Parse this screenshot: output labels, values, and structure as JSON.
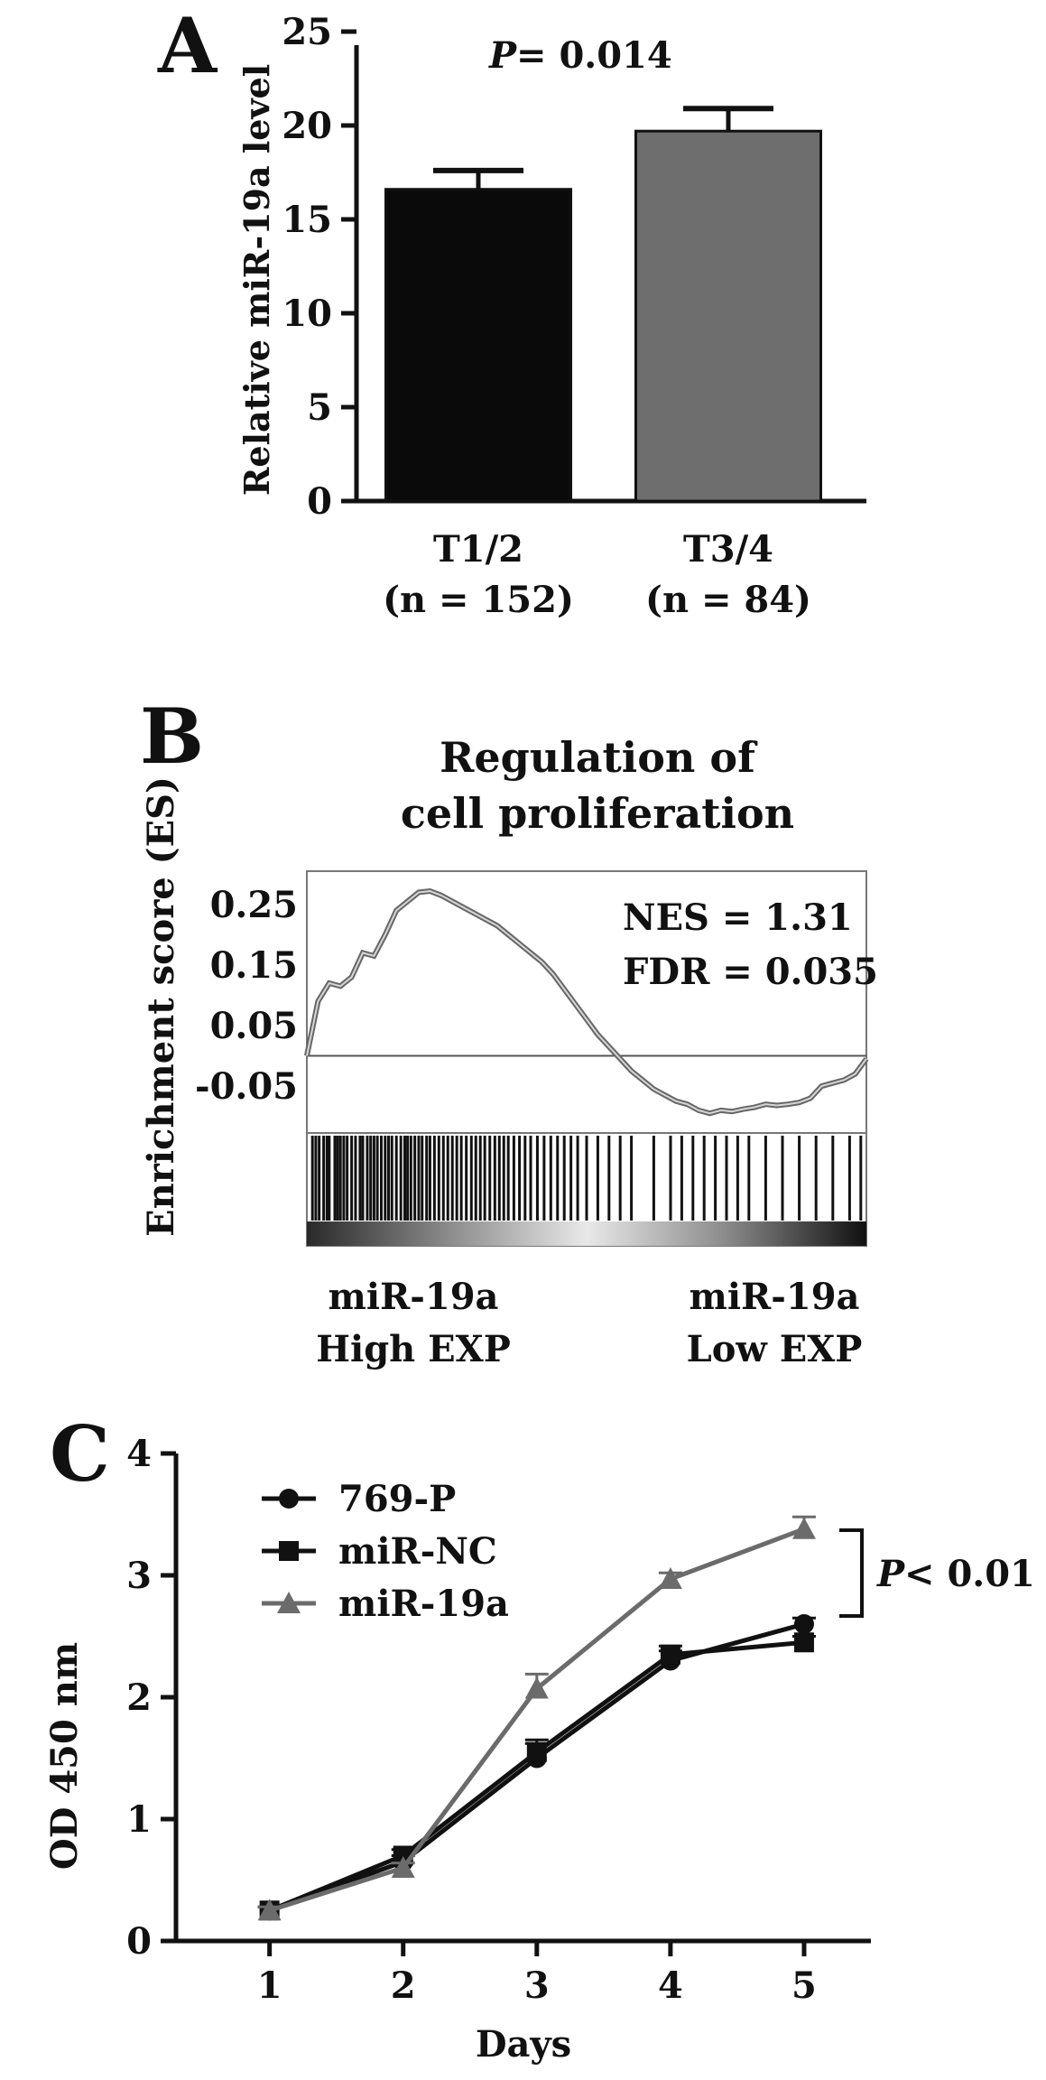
{
  "chart_data": [
    {
      "type": "bar",
      "panel_label": "A",
      "categories": [
        "T1/2",
        "T3/4"
      ],
      "category_sublabels": [
        "(n = 152)",
        "(n = 84)"
      ],
      "values": [
        16.6,
        19.7
      ],
      "errors": [
        1.0,
        1.2
      ],
      "colors": [
        "#0a0a0a",
        "#6e6e6e"
      ],
      "ylabel": "Relative miR-19a level",
      "ylim": [
        0,
        25
      ],
      "yticks": [
        "0",
        "5",
        "10",
        "15",
        "20",
        "25"
      ],
      "annotation": {
        "p_label": "P",
        "p_value": "= 0.014"
      }
    },
    {
      "type": "line",
      "panel_label": "B",
      "title_line1": "Regulation of",
      "title_line2": "cell proliferation",
      "ylabel": "Enrichment score (ES)",
      "yticks": [
        "0.25",
        "0.15",
        "0.05",
        "-0.05"
      ],
      "ylim": [
        -0.12,
        0.29
      ],
      "x": [
        0,
        0.02,
        0.04,
        0.06,
        0.08,
        0.1,
        0.12,
        0.14,
        0.16,
        0.18,
        0.2,
        0.22,
        0.24,
        0.26,
        0.28,
        0.3,
        0.32,
        0.34,
        0.36,
        0.38,
        0.4,
        0.42,
        0.44,
        0.46,
        0.48,
        0.5,
        0.52,
        0.54,
        0.56,
        0.58,
        0.6,
        0.62,
        0.64,
        0.66,
        0.68,
        0.7,
        0.72,
        0.74,
        0.76,
        0.78,
        0.8,
        0.82,
        0.84,
        0.86,
        0.88,
        0.9,
        0.92,
        0.94,
        0.96,
        0.98,
        1.0
      ],
      "y": [
        0.0,
        0.09,
        0.12,
        0.115,
        0.13,
        0.17,
        0.165,
        0.2,
        0.24,
        0.255,
        0.27,
        0.272,
        0.265,
        0.255,
        0.245,
        0.235,
        0.225,
        0.215,
        0.2,
        0.185,
        0.17,
        0.155,
        0.135,
        0.11,
        0.085,
        0.06,
        0.035,
        0.015,
        -0.005,
        -0.025,
        -0.04,
        -0.055,
        -0.065,
        -0.075,
        -0.08,
        -0.09,
        -0.095,
        -0.09,
        -0.092,
        -0.088,
        -0.085,
        -0.08,
        -0.082,
        -0.08,
        -0.077,
        -0.07,
        -0.05,
        -0.045,
        -0.04,
        -0.03,
        -0.005
      ],
      "nes": "NES = 1.31",
      "fdr": "FDR = 0.035",
      "left_label_line1": "miR-19a",
      "left_label_line2": "High EXP",
      "right_label_line1": "miR-19a",
      "right_label_line2": "Low EXP",
      "hits": [
        0.01,
        0.016,
        0.022,
        0.03,
        0.036,
        0.04,
        0.05,
        0.055,
        0.06,
        0.066,
        0.072,
        0.08,
        0.087,
        0.095,
        0.1,
        0.108,
        0.114,
        0.12,
        0.126,
        0.133,
        0.14,
        0.146,
        0.152,
        0.16,
        0.168,
        0.175,
        0.18,
        0.186,
        0.193,
        0.2,
        0.206,
        0.214,
        0.22,
        0.228,
        0.236,
        0.244,
        0.252,
        0.26,
        0.268,
        0.276,
        0.285,
        0.294,
        0.302,
        0.31,
        0.318,
        0.327,
        0.336,
        0.344,
        0.352,
        0.36,
        0.37,
        0.38,
        0.39,
        0.4,
        0.412,
        0.424,
        0.436,
        0.448,
        0.46,
        0.472,
        0.484,
        0.5,
        0.52,
        0.54,
        0.56,
        0.58,
        0.62,
        0.65,
        0.67,
        0.69,
        0.71,
        0.73,
        0.75,
        0.77,
        0.79,
        0.82,
        0.85,
        0.88,
        0.91,
        0.94,
        0.97,
        0.99
      ]
    },
    {
      "type": "line",
      "panel_label": "C",
      "x": [
        1,
        2,
        3,
        4,
        5
      ],
      "xticks": [
        "1",
        "2",
        "3",
        "4",
        "5"
      ],
      "yticks": [
        "0",
        "1",
        "2",
        "3",
        "4"
      ],
      "xlabel": "Days",
      "ylabel": "OD  450 nm",
      "xlim": [
        0.3,
        5.5
      ],
      "ylim": [
        0,
        4
      ],
      "series": [
        {
          "name": "769-P",
          "marker": "circle",
          "color": "#111111",
          "values": [
            0.25,
            0.65,
            1.5,
            2.3,
            2.6
          ],
          "errors": [
            0.03,
            0.05,
            0.12,
            0.08,
            0.05
          ]
        },
        {
          "name": "miR-NC",
          "marker": "square",
          "color": "#111111",
          "values": [
            0.25,
            0.7,
            1.55,
            2.35,
            2.45
          ],
          "errors": [
            0.03,
            0.05,
            0.1,
            0.07,
            0.05
          ]
        },
        {
          "name": "miR-19a",
          "marker": "triangle",
          "color": "#6b6b6b",
          "values": [
            0.25,
            0.6,
            2.07,
            2.97,
            3.38
          ],
          "errors": [
            0.03,
            0.04,
            0.12,
            0.05,
            0.1
          ]
        }
      ],
      "annotation": {
        "p_label": "P",
        "p_value": "< 0.01"
      }
    }
  ]
}
